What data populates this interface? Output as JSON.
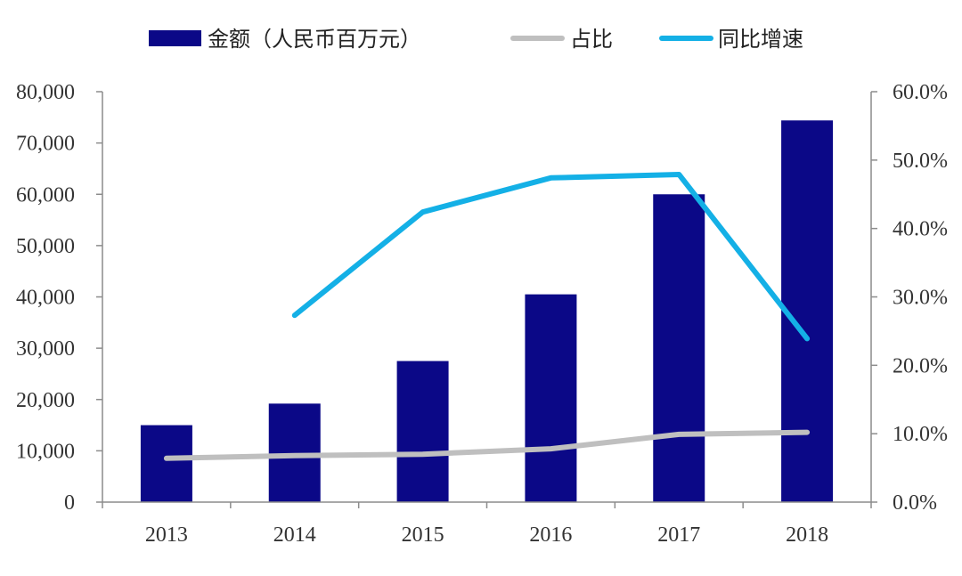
{
  "chart_data": {
    "type": "bar",
    "categories": [
      "2013",
      "2014",
      "2015",
      "2016",
      "2017",
      "2018"
    ],
    "series": [
      {
        "name": "金额（人民币百万元）",
        "kind": "bar",
        "axis": "left",
        "color": "#0b0887",
        "values": [
          15000,
          19200,
          27500,
          40500,
          60000,
          74400
        ]
      },
      {
        "name": "占比",
        "kind": "line",
        "axis": "right",
        "color": "#bfbfbf",
        "values": [
          6.4,
          6.8,
          7.0,
          7.8,
          9.9,
          10.2
        ]
      },
      {
        "name": "同比增速",
        "kind": "line",
        "axis": "right",
        "color": "#14b0e6",
        "values": [
          null,
          27.3,
          42.4,
          47.4,
          47.9,
          23.9
        ]
      }
    ],
    "left_axis": {
      "min": 0,
      "max": 80000,
      "ticks": [
        0,
        10000,
        20000,
        30000,
        40000,
        50000,
        60000,
        70000,
        80000
      ],
      "tick_labels": [
        "0",
        "10,000",
        "20,000",
        "30,000",
        "40,000",
        "50,000",
        "60,000",
        "70,000",
        "80,000"
      ]
    },
    "right_axis": {
      "min": 0,
      "max": 60,
      "ticks": [
        0,
        10,
        20,
        30,
        40,
        50,
        60
      ],
      "tick_labels": [
        "0.0%",
        "10.0%",
        "20.0%",
        "30.0%",
        "40.0%",
        "50.0%",
        "60.0%"
      ]
    },
    "legend_position": "top",
    "grid": false
  }
}
